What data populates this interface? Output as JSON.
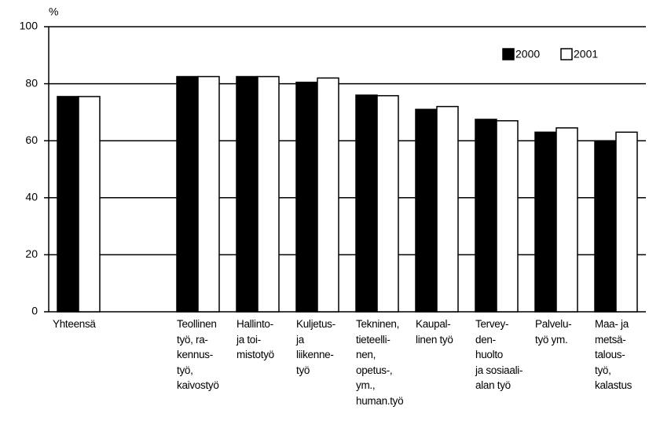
{
  "chart_data": {
    "type": "bar",
    "y_label": "%",
    "categories": [
      "Yhteensä",
      null,
      "Teollinen\ntyö, ra-\nkennus-\ntyö,\nkaivostyö",
      "Hallinto-\nja toi-\nmistotyö",
      "Kuljetus-\nja\nliikenne-\ntyö",
      "Tekninen,\ntieteelli-\nnen,\nopetus-,\nym.,\nhuman.työ",
      "Kaupal-\nlinen työ",
      "Tervey-\nden-\nhuolto\nja sosiaali-\nalan työ",
      "Palvelu-\ntyö ym.",
      "Maa- ja\nmetsä-\ntalous-\ntyö,\nkalastus"
    ],
    "series": [
      {
        "name": "2000",
        "color": "#000000",
        "values": [
          75.5,
          null,
          82.5,
          82.5,
          80.5,
          76,
          71,
          67.5,
          63,
          60
        ]
      },
      {
        "name": "2001",
        "color": "#ffffff",
        "values": [
          75.5,
          null,
          82.5,
          82.5,
          82,
          75.8,
          72,
          67,
          64.5,
          63
        ]
      }
    ],
    "ylim": [
      0,
      100
    ],
    "yticks": [
      0,
      20,
      40,
      60,
      80,
      100
    ],
    "grid": true,
    "legend": "upper right"
  }
}
